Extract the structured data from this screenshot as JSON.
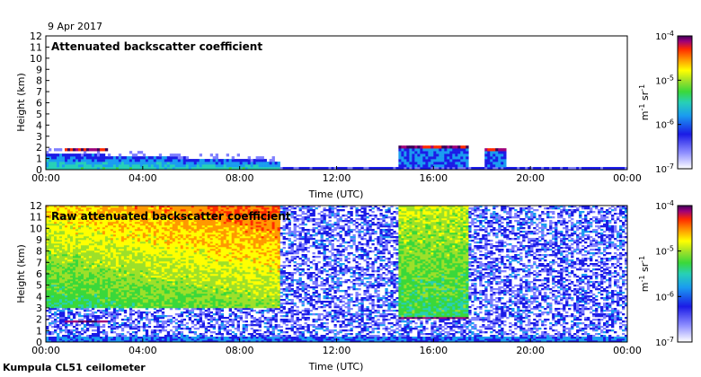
{
  "date_label": "9 Apr 2017",
  "instrument_label": "Kumpula CL51 ceilometer",
  "colormap": [
    "#ffffff",
    "#7f7fff",
    "#1b1be6",
    "#1a9cf0",
    "#27d0b6",
    "#3ad83a",
    "#9de02a",
    "#ffff00",
    "#ff9900",
    "#ff2a00",
    "#9e007a",
    "#3d0056"
  ],
  "chart_data": [
    {
      "type": "heatmap",
      "title": "Attenuated backscatter coefficient",
      "xlabel": "Time (UTC)",
      "ylabel": "Height (km)",
      "x_ticks": [
        "00:00",
        "04:00",
        "08:00",
        "12:00",
        "16:00",
        "20:00",
        "00:00"
      ],
      "y_ticks": [
        "0",
        "1",
        "2",
        "3",
        "4",
        "5",
        "6",
        "7",
        "8",
        "9",
        "10",
        "11",
        "12"
      ],
      "xlim_hours": [
        0,
        24
      ],
      "ylim_km": [
        0,
        12
      ],
      "colorbar": {
        "unit_prefix": "m",
        "unit_exp1": "-1",
        "unit_mid": " sr",
        "unit_exp2": "-1",
        "ticks": [
          {
            "base": "10",
            "exp": "-4"
          },
          {
            "base": "10",
            "exp": "-5"
          },
          {
            "base": "10",
            "exp": "-6"
          },
          {
            "base": "10",
            "exp": "-7"
          }
        ],
        "scale": "log",
        "range": [
          1e-07,
          0.0001
        ]
      },
      "features": {
        "boundary_layer": {
          "time_range_h": [
            0.0,
            9.7
          ],
          "top_km": [
            1.5,
            0.8
          ]
        },
        "cloud_layers": [
          {
            "time_range_h": [
              0.8,
              2.6
            ],
            "height_km": 1.8
          },
          {
            "time_range_h": [
              14.6,
              17.4
            ],
            "height_km": 2.1
          },
          {
            "time_range_h": [
              18.1,
              19.0
            ],
            "height_km": 1.8
          }
        ]
      }
    },
    {
      "type": "heatmap",
      "title": "Raw attenuated backscatter coefficient",
      "xlabel": "Time (UTC)",
      "ylabel": "Height (km)",
      "x_ticks": [
        "00:00",
        "04:00",
        "08:00",
        "12:00",
        "16:00",
        "20:00",
        "00:00"
      ],
      "y_ticks": [
        "0",
        "1",
        "2",
        "3",
        "4",
        "5",
        "6",
        "7",
        "8",
        "9",
        "10",
        "11",
        "12"
      ],
      "xlim_hours": [
        0,
        24
      ],
      "ylim_km": [
        0,
        12
      ],
      "colorbar": {
        "unit_prefix": "m",
        "unit_exp1": "-1",
        "unit_mid": " sr",
        "unit_exp2": "-1",
        "ticks": [
          {
            "base": "10",
            "exp": "-4"
          },
          {
            "base": "10",
            "exp": "-5"
          },
          {
            "base": "10",
            "exp": "-6"
          },
          {
            "base": "10",
            "exp": "-7"
          }
        ],
        "scale": "log",
        "range": [
          1e-07,
          0.0001
        ]
      },
      "features": {
        "high_signal_region": {
          "time_range_h": [
            0.0,
            9.7
          ],
          "height_km": [
            3.0,
            12.0
          ]
        },
        "high_signal_region_2": {
          "time_range_h": [
            14.6,
            17.4
          ],
          "height_km": [
            2.0,
            12.0
          ]
        },
        "cloud_layers": [
          {
            "time_range_h": [
              0.8,
              2.6
            ],
            "height_km": 1.8
          },
          {
            "time_range_h": [
              14.6,
              17.4
            ],
            "height_km": 2.1
          }
        ]
      }
    }
  ]
}
